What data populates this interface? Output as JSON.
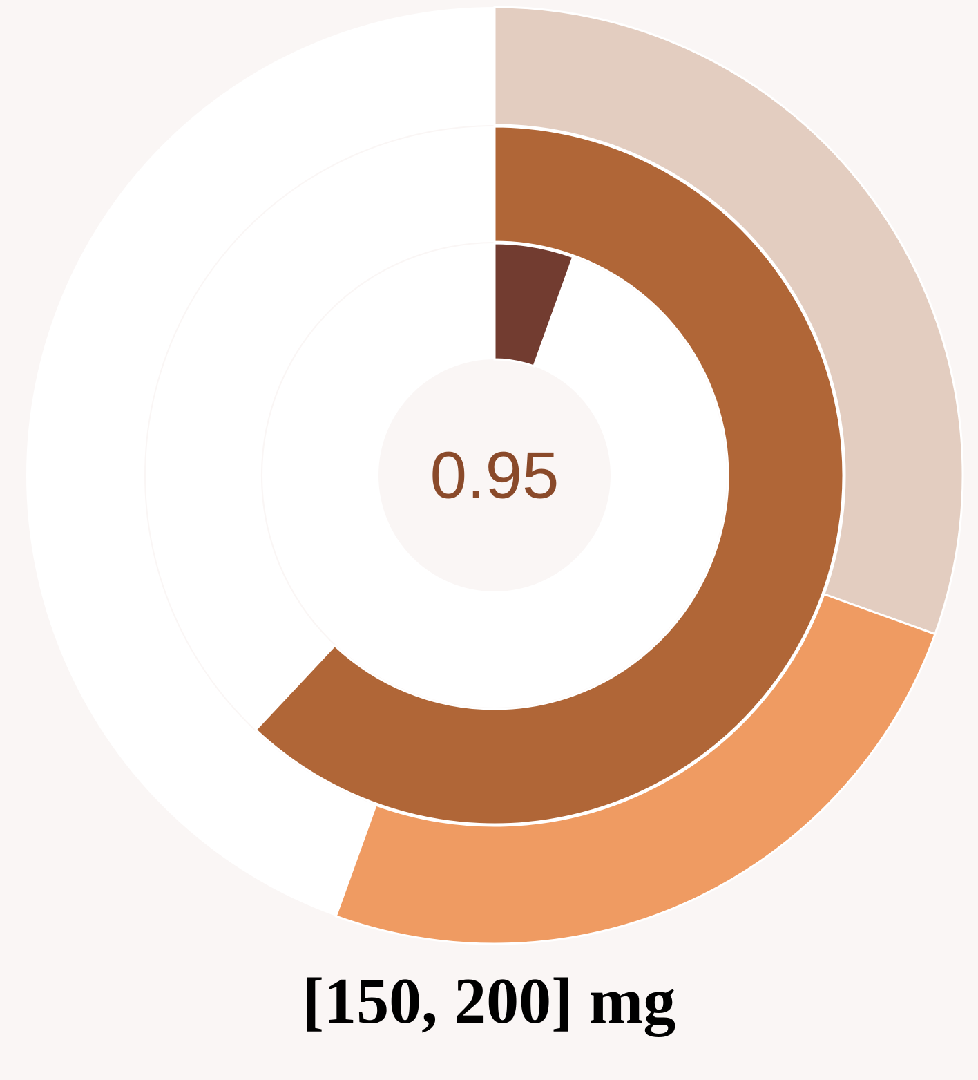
{
  "chart_data": {
    "type": "radial-gauge",
    "center_value": "0.95",
    "caption": "[150, 200] mg",
    "rings": [
      {
        "name": "",
        "value": 0.55,
        "range": [
          0,
          1
        ],
        "track_color": "#ffffff",
        "segments": [
          {
            "from": 0,
            "to": 0.305,
            "color": "#e3cdc0"
          },
          {
            "from": 0.305,
            "to": 0.555,
            "color": "#ef9b62"
          }
        ]
      },
      {
        "name": "",
        "value": 0.62,
        "range": [
          0,
          1
        ],
        "track_color": "#ffffff",
        "segments": [
          {
            "from": 0,
            "to": 0.62,
            "color": "#b06637"
          }
        ]
      },
      {
        "name": "",
        "value": 0.055,
        "range": [
          0,
          1
        ],
        "track_color": "#ffffff",
        "segments": [
          {
            "from": 0,
            "to": 0.055,
            "color": "#723c30"
          }
        ]
      }
    ],
    "colors": {
      "background": "#faf6f5",
      "center_disc": "#faf6f5",
      "value_text": "#8a4a2a"
    }
  }
}
